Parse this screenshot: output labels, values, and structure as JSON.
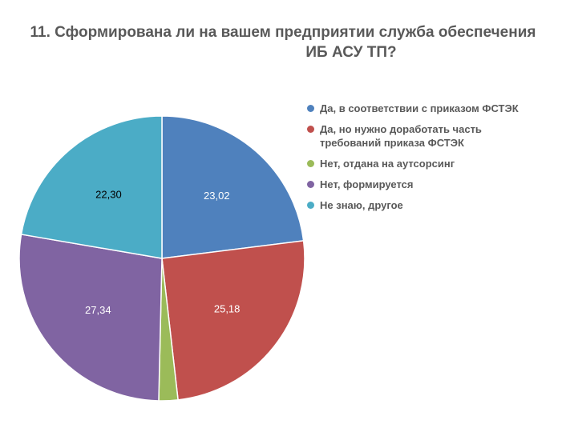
{
  "chart_data": {
    "type": "pie",
    "title_line1": "11. Сформирована ли на вашем предприятии служба обеспечения",
    "title_line2": "ИБ АСУ ТП?",
    "slices": [
      {
        "name": "Да, в соответствии с приказом ФСТЭК",
        "value": 23.02,
        "label": "23,02",
        "color": "#4f81bd",
        "label_color": "#ffffff"
      },
      {
        "name": "Да, но нужно доработать часть\nтребований приказа ФСТЭК",
        "value": 25.18,
        "label": "25,18",
        "color": "#c0504d",
        "label_color": "#ffffff"
      },
      {
        "name": "Нет, отдана на аутсорсинг",
        "value": 2.16,
        "label": "",
        "color": "#9bbb59",
        "label_color": "#ffffff"
      },
      {
        "name": "Нет, формируется",
        "value": 27.34,
        "label": "27,34",
        "color": "#8064a2",
        "label_color": "#ffffff"
      },
      {
        "name": "Не знаю, другое",
        "value": 22.3,
        "label": "22,30",
        "color": "#4bacc6",
        "label_color": "#000000"
      }
    ],
    "legend_position": "right"
  }
}
